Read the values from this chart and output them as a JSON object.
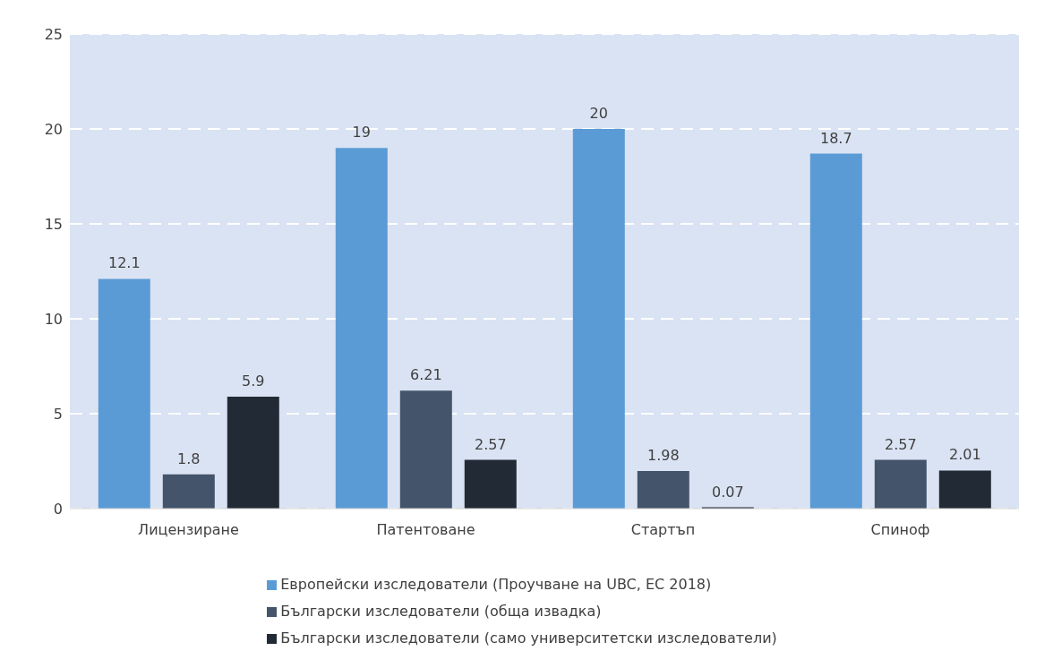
{
  "chart_data": {
    "type": "bar",
    "categories": [
      "Лицензиране",
      "Патентоване",
      "Стартъп",
      "Спиноф"
    ],
    "series": [
      {
        "name": "Европейски изследователи (Проучване на UBC, ЕС 2018)",
        "color": "#5b9bd5",
        "values": [
          12.1,
          19,
          20,
          18.7
        ]
      },
      {
        "name": "Български изследователи (обща извадка)",
        "color": "#44546a",
        "values": [
          1.8,
          6.21,
          1.98,
          2.57
        ]
      },
      {
        "name": "Български изследователи (само университетски изследователи)",
        "color": "#222a35",
        "values": [
          5.9,
          2.57,
          0.07,
          2.01
        ]
      }
    ],
    "ylim": [
      0,
      25
    ],
    "yticks": [
      0,
      5,
      10,
      15,
      20,
      25
    ],
    "grid": "y",
    "legend": "bottom",
    "data_labels": true
  }
}
